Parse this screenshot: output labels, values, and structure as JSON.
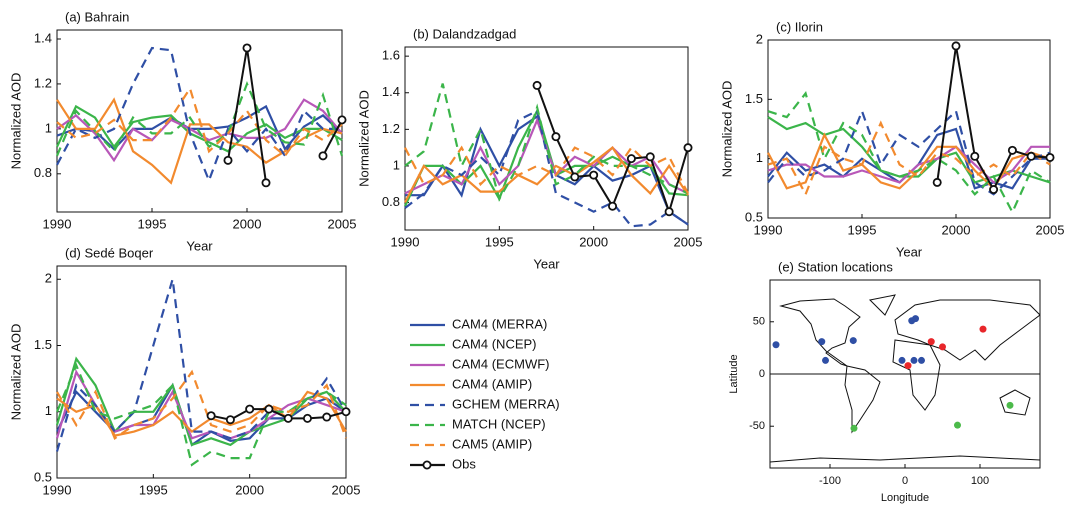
{
  "chart_data": [
    {
      "type": "line",
      "title": "(a) Bahrain",
      "xlabel": "Year",
      "ylabel": "Normalized AOD",
      "x": [
        1990,
        1991,
        1992,
        1993,
        1994,
        1995,
        1996,
        1997,
        1998,
        1999,
        2000,
        2001,
        2002,
        2003,
        2004,
        2005
      ],
      "xlim": [
        1990,
        2005
      ],
      "xticks": [
        1990,
        1995,
        2000,
        2005
      ],
      "ylim": [
        0.63,
        1.44
      ],
      "yticks": [
        0.8,
        1,
        1.2,
        1.4
      ],
      "series": [
        {
          "color": "#2f4fa5",
          "dash": false,
          "values": [
            0.97,
            1.0,
            0.99,
            0.91,
            1.0,
            1.0,
            1.05,
            1.0,
            1.0,
            1.01,
            1.05,
            1.1,
            0.91,
            1.01,
            1.06,
            0.98
          ]
        },
        {
          "color": "#3bb54a",
          "dash": false,
          "values": [
            0.92,
            1.1,
            1.05,
            0.92,
            1.03,
            1.05,
            1.06,
            0.98,
            0.94,
            0.9,
            0.98,
            1.02,
            0.96,
            1.0,
            1.0,
            0.95
          ]
        },
        {
          "color": "#b857b8",
          "dash": false,
          "values": [
            1.0,
            1.06,
            0.98,
            0.86,
            1.0,
            0.95,
            1.04,
            1.0,
            0.95,
            0.98,
            0.96,
            0.96,
            1.0,
            1.13,
            1.08,
            0.98
          ]
        },
        {
          "color": "#f28a2e",
          "dash": false,
          "values": [
            1.13,
            1.0,
            1.0,
            1.13,
            0.9,
            0.84,
            0.76,
            1.02,
            1.02,
            0.94,
            0.92,
            0.85,
            0.9,
            0.96,
            1.0,
            0.98
          ]
        },
        {
          "color": "#2f4fa5",
          "dash": true,
          "values": [
            0.84,
            1.0,
            0.96,
            1.0,
            1.2,
            1.36,
            1.35,
            0.98,
            0.77,
            1.0,
            0.9,
            1.0,
            0.88,
            1.08,
            1.0,
            1.0
          ]
        },
        {
          "color": "#3bb54a",
          "dash": true,
          "values": [
            0.88,
            1.08,
            0.99,
            0.9,
            1.05,
            0.98,
            0.98,
            1.05,
            0.92,
            0.98,
            1.2,
            1.0,
            0.94,
            0.93,
            1.15,
            0.88
          ]
        },
        {
          "color": "#f28a2e",
          "dash": true,
          "values": [
            1.03,
            0.96,
            0.98,
            1.04,
            0.95,
            0.95,
            1.05,
            1.18,
            0.9,
            0.98,
            1.08,
            0.95,
            0.88,
            1.0,
            0.95,
            1.02
          ]
        },
        {
          "color": "#111111",
          "dash": false,
          "marker": "circle",
          "values": [
            null,
            null,
            null,
            null,
            null,
            null,
            null,
            null,
            null,
            0.86,
            1.36,
            0.76,
            null,
            null,
            0.88,
            1.04
          ]
        }
      ]
    },
    {
      "type": "line",
      "title": "(b) Dalandzadgad",
      "xlabel": "Year",
      "ylabel": "Normalized AOD",
      "x": [
        1990,
        1991,
        1992,
        1993,
        1994,
        1995,
        1996,
        1997,
        1998,
        1999,
        2000,
        2001,
        2002,
        2003,
        2004,
        2005
      ],
      "xlim": [
        1990,
        2005
      ],
      "xticks": [
        1990,
        1995,
        2000,
        2005
      ],
      "ylim": [
        0.65,
        1.65
      ],
      "yticks": [
        0.8,
        1,
        1.2,
        1.4,
        1.6
      ],
      "series": [
        {
          "color": "#2f4fa5",
          "dash": false,
          "values": [
            0.84,
            0.84,
            1.0,
            0.84,
            1.2,
            1.0,
            1.2,
            1.27,
            0.95,
            0.9,
            1.0,
            0.92,
            0.95,
            1.0,
            0.75,
            0.68
          ]
        },
        {
          "color": "#3bb54a",
          "dash": false,
          "values": [
            0.78,
            1.0,
            1.0,
            0.9,
            1.0,
            0.82,
            1.1,
            1.3,
            0.95,
            1.0,
            1.0,
            1.05,
            1.0,
            1.0,
            0.85,
            0.84
          ]
        },
        {
          "color": "#b857b8",
          "dash": false,
          "values": [
            0.85,
            0.9,
            0.95,
            0.9,
            1.1,
            0.9,
            1.0,
            1.25,
            0.95,
            1.05,
            1.0,
            1.1,
            1.0,
            1.05,
            0.9,
            0.85
          ]
        },
        {
          "color": "#f28a2e",
          "dash": false,
          "values": [
            0.8,
            1.0,
            0.9,
            0.95,
            0.86,
            0.86,
            0.95,
            0.9,
            1.0,
            0.95,
            1.02,
            1.1,
            0.95,
            0.85,
            1.0,
            0.84
          ]
        },
        {
          "color": "#2f4fa5",
          "dash": true,
          "values": [
            0.77,
            0.85,
            1.0,
            0.95,
            1.05,
            0.95,
            1.25,
            1.3,
            0.85,
            0.8,
            0.75,
            0.8,
            0.67,
            0.68,
            0.75,
            0.68
          ]
        },
        {
          "color": "#3bb54a",
          "dash": true,
          "values": [
            1.0,
            1.08,
            1.45,
            1.0,
            1.2,
            0.82,
            1.0,
            1.32,
            0.9,
            0.95,
            1.05,
            1.0,
            1.0,
            0.95,
            0.9,
            0.85
          ]
        },
        {
          "color": "#f28a2e",
          "dash": true,
          "values": [
            1.1,
            0.9,
            0.95,
            1.1,
            0.9,
            1.0,
            0.95,
            1.0,
            0.95,
            1.1,
            1.05,
            0.95,
            1.1,
            1.0,
            1.05,
            0.85
          ]
        },
        {
          "color": "#111111",
          "dash": false,
          "marker": "circle",
          "values": [
            null,
            null,
            null,
            null,
            null,
            null,
            null,
            1.44,
            1.16,
            0.94,
            0.95,
            0.78,
            1.04,
            1.05,
            0.75,
            1.1
          ]
        }
      ]
    },
    {
      "type": "line",
      "title": "(c) Ilorin",
      "xlabel": "Year",
      "ylabel": "Normalized AOD",
      "x": [
        1990,
        1991,
        1992,
        1993,
        1994,
        1995,
        1996,
        1997,
        1998,
        1999,
        2000,
        2001,
        2002,
        2003,
        2004,
        2005
      ],
      "xlim": [
        1990,
        2005
      ],
      "xticks": [
        1990,
        1995,
        2000,
        2005
      ],
      "ylim": [
        0.5,
        2
      ],
      "yticks": [
        0.5,
        1,
        1.5,
        2
      ],
      "series": [
        {
          "color": "#2f4fa5",
          "dash": false,
          "values": [
            0.85,
            1.05,
            0.9,
            0.95,
            0.85,
            1.0,
            0.9,
            0.8,
            0.95,
            1.2,
            1.25,
            0.75,
            0.8,
            0.75,
            1.0,
            1.0
          ]
        },
        {
          "color": "#3bb54a",
          "dash": false,
          "values": [
            1.35,
            1.25,
            1.3,
            1.2,
            1.25,
            1.1,
            0.9,
            0.85,
            0.85,
            1.0,
            1.05,
            0.8,
            0.85,
            0.9,
            0.85,
            0.8
          ]
        },
        {
          "color": "#b857b8",
          "dash": false,
          "values": [
            0.9,
            0.95,
            0.95,
            0.85,
            0.85,
            0.9,
            0.85,
            0.8,
            0.95,
            1.0,
            1.1,
            0.95,
            0.8,
            0.9,
            1.1,
            1.1
          ]
        },
        {
          "color": "#f28a2e",
          "dash": false,
          "values": [
            1.05,
            0.75,
            0.8,
            1.2,
            0.9,
            0.95,
            0.8,
            0.75,
            0.9,
            1.1,
            1.1,
            0.9,
            0.75,
            1.0,
            1.05,
            1.0
          ]
        },
        {
          "color": "#2f4fa5",
          "dash": true,
          "values": [
            0.8,
            1.0,
            0.85,
            0.9,
            1.0,
            1.4,
            0.95,
            1.2,
            1.1,
            1.25,
            1.4,
            0.8,
            0.7,
            0.85,
            1.0,
            1.05
          ]
        },
        {
          "color": "#3bb54a",
          "dash": true,
          "values": [
            1.4,
            1.35,
            1.55,
            1.0,
            1.3,
            1.2,
            0.9,
            0.85,
            0.9,
            1.0,
            0.9,
            0.7,
            0.85,
            0.55,
            0.9,
            0.8
          ]
        },
        {
          "color": "#f28a2e",
          "dash": true,
          "values": [
            0.95,
            1.0,
            0.7,
            1.1,
            1.0,
            0.95,
            1.3,
            0.95,
            0.85,
            1.05,
            1.0,
            0.85,
            0.95,
            0.85,
            1.05,
            0.95
          ]
        },
        {
          "color": "#111111",
          "dash": false,
          "marker": "circle",
          "values": [
            null,
            null,
            null,
            null,
            null,
            null,
            null,
            null,
            null,
            0.8,
            1.95,
            1.02,
            0.74,
            1.07,
            1.02,
            1.01
          ]
        }
      ]
    },
    {
      "type": "line",
      "title": "(d) Sedé Boqer",
      "ylabel": "Normalized AOD",
      "x": [
        1990,
        1991,
        1992,
        1993,
        1994,
        1995,
        1996,
        1997,
        1998,
        1999,
        2000,
        2001,
        2002,
        2003,
        2004,
        2005
      ],
      "xlim": [
        1990,
        2005
      ],
      "xticks": [
        1990,
        1995,
        2000,
        2005
      ],
      "ylim": [
        0.5,
        2.1
      ],
      "yticks": [
        0.5,
        1,
        1.5,
        2
      ],
      "series": [
        {
          "name": "CAM4 (MERRA)",
          "color": "#2f4fa5",
          "dash": false,
          "values": [
            0.85,
            1.15,
            1.0,
            0.85,
            0.9,
            0.95,
            1.2,
            0.75,
            0.85,
            0.78,
            0.8,
            0.95,
            0.95,
            1.05,
            1.1,
            1.0
          ]
        },
        {
          "name": "CAM4 (NCEP)",
          "color": "#3bb54a",
          "dash": false,
          "values": [
            0.9,
            1.4,
            1.2,
            0.85,
            1.0,
            1.0,
            1.2,
            0.75,
            0.8,
            0.75,
            0.85,
            0.9,
            0.95,
            1.1,
            1.15,
            1.0
          ]
        },
        {
          "name": "CAM4 (ECMWF)",
          "color": "#b857b8",
          "dash": false,
          "values": [
            0.8,
            1.3,
            1.05,
            0.85,
            0.9,
            0.9,
            1.15,
            0.8,
            0.85,
            0.8,
            0.85,
            0.95,
            1.05,
            1.1,
            1.05,
            1.0
          ]
        },
        {
          "name": "CAM4 (AMIP)",
          "color": "#f28a2e",
          "dash": false,
          "values": [
            1.1,
            1.0,
            1.05,
            0.82,
            0.85,
            0.9,
            1.0,
            0.85,
            0.95,
            0.9,
            0.95,
            1.05,
            0.95,
            1.15,
            1.1,
            0.85
          ]
        },
        {
          "name": "GCHEM (MERRA)",
          "color": "#2f4fa5",
          "dash": true,
          "values": [
            0.7,
            1.2,
            1.05,
            0.85,
            1.0,
            1.5,
            2.0,
            0.85,
            0.85,
            0.8,
            0.85,
            1.0,
            1.0,
            1.05,
            1.25,
            1.0
          ]
        },
        {
          "name": "MATCH (NCEP)",
          "color": "#3bb54a",
          "dash": true,
          "values": [
            1.0,
            1.35,
            1.0,
            0.95,
            1.0,
            1.05,
            1.2,
            0.6,
            0.7,
            0.65,
            0.65,
            1.0,
            1.0,
            1.1,
            1.15,
            1.05
          ]
        },
        {
          "name": "CAM5 (AMIP)",
          "color": "#f28a2e",
          "dash": true,
          "values": [
            1.15,
            0.9,
            1.15,
            0.8,
            0.9,
            0.95,
            1.1,
            1.3,
            0.9,
            0.85,
            0.9,
            1.05,
            1.0,
            1.05,
            1.2,
            0.8
          ]
        },
        {
          "name": "Obs",
          "color": "#111111",
          "dash": false,
          "marker": "circle",
          "values": [
            null,
            null,
            null,
            null,
            null,
            null,
            null,
            null,
            0.97,
            0.94,
            1.02,
            1.02,
            0.95,
            0.95,
            0.96,
            1.0
          ]
        }
      ]
    },
    {
      "type": "scatter",
      "title": "(e) Station locations",
      "xlabel": "Longitude",
      "ylabel": "Latitude",
      "xlim": [
        -180,
        180
      ],
      "xticks": [
        -100,
        0,
        100
      ],
      "ylim": [
        -90,
        90
      ],
      "yticks": [
        -50,
        0,
        50
      ],
      "hline": 0,
      "series": [
        {
          "color": "#2f4fa5",
          "x": [
            -172,
            -111,
            -106,
            9,
            14,
            -4,
            12,
            22,
            -69
          ],
          "y": [
            28,
            31,
            13,
            51,
            53,
            13,
            13,
            13,
            32
          ]
        },
        {
          "color": "#e8262a",
          "x": [
            35,
            50,
            104,
            4
          ],
          "y": [
            31,
            26,
            43,
            8
          ]
        },
        {
          "color": "#4cba4a",
          "x": [
            -68,
            70,
            140
          ],
          "y": [
            -52,
            -49,
            -30
          ]
        }
      ]
    }
  ]
}
